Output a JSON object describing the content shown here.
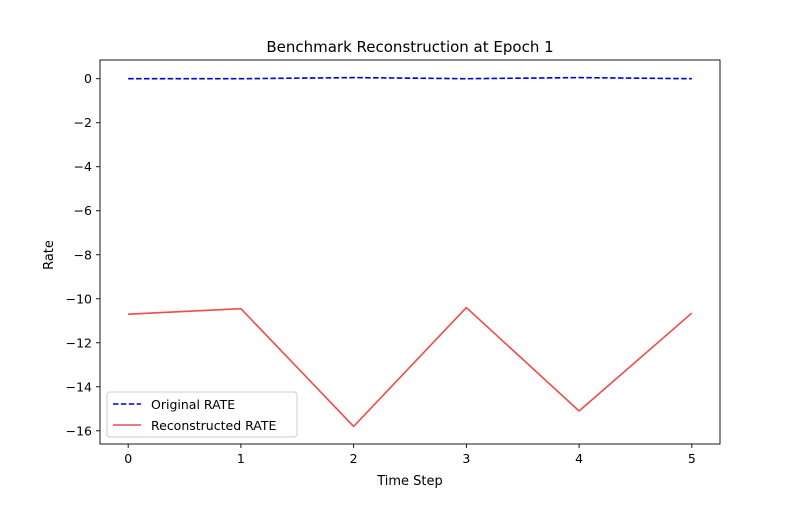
{
  "chart_data": {
    "type": "line",
    "title": "Benchmark Reconstruction at Epoch 1",
    "xlabel": "Time Step",
    "ylabel": "Rate",
    "x": [
      0,
      1,
      2,
      3,
      4,
      5
    ],
    "xticks": [
      0,
      1,
      2,
      3,
      4,
      5
    ],
    "yticks": [
      0,
      -2,
      -4,
      -6,
      -8,
      -10,
      -12,
      -14,
      -16
    ],
    "xlim": [
      -0.25,
      5.25
    ],
    "ylim": [
      -16.6,
      0.85
    ],
    "grid": false,
    "legend_position": "lower-left",
    "series": [
      {
        "name": "Original RATE",
        "color": "#0000cc",
        "line_style": "dashed",
        "values": [
          0.0,
          0.0,
          0.05,
          0.0,
          0.05,
          0.0
        ]
      },
      {
        "name": "Reconstructed RATE",
        "color": "#f04a4a",
        "line_style": "solid",
        "values": [
          -10.7,
          -10.45,
          -15.8,
          -10.4,
          -15.1,
          -10.65
        ]
      }
    ]
  }
}
